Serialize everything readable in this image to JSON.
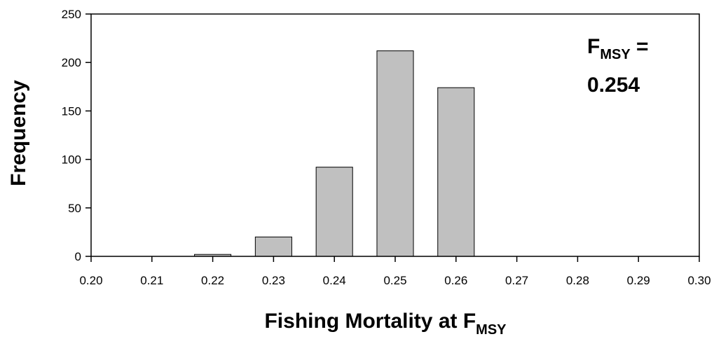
{
  "chart_data": {
    "type": "bar",
    "x": [
      0.22,
      0.23,
      0.24,
      0.25,
      0.26
    ],
    "values": [
      2,
      20,
      92,
      212,
      174
    ],
    "xlabel_main": "Fishing Mortality at F",
    "xlabel_sub": "MSY",
    "ylabel": "Frequency",
    "xlim": [
      0.2,
      0.3
    ],
    "ylim": [
      0,
      250
    ],
    "xticks": [
      "0.20",
      "0.21",
      "0.22",
      "0.23",
      "0.24",
      "0.25",
      "0.26",
      "0.27",
      "0.28",
      "0.29",
      "0.30"
    ],
    "yticks": [
      "0",
      "50",
      "100",
      "150",
      "200",
      "250"
    ],
    "grid": false,
    "legend": "none",
    "bar_color": "#c0c0c0",
    "annotation": {
      "main": "F",
      "sub": "MSY",
      "eq": " =",
      "value": "0.254"
    }
  }
}
